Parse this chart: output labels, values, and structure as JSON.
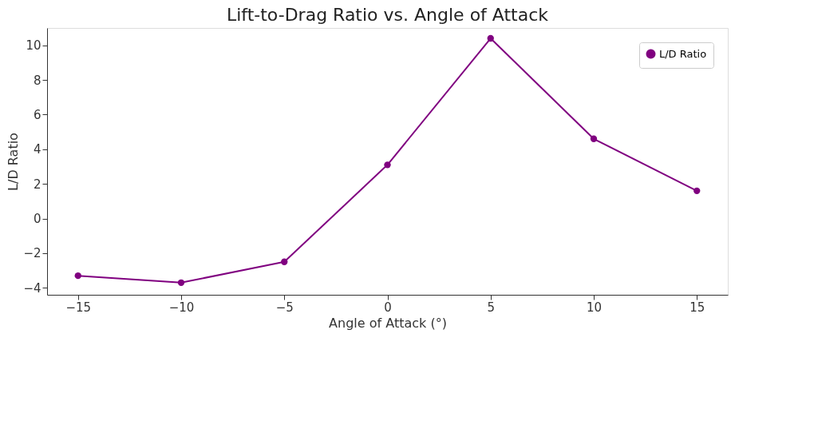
{
  "chart_data": {
    "type": "line",
    "title": "Lift-to-Drag Ratio vs. Angle of Attack",
    "xlabel": "Angle of Attack (°)",
    "ylabel": "L/D Ratio",
    "x": [
      -15,
      -10,
      -5,
      0,
      5,
      10,
      15
    ],
    "series": [
      {
        "name": "L/D Ratio",
        "color": "#800080",
        "values": [
          -3.3,
          -3.7,
          -2.5,
          3.1,
          10.4,
          4.6,
          1.6
        ]
      }
    ],
    "xlim": [
      -16.5,
      16.5
    ],
    "xticks": [
      -15,
      -10,
      -5,
      0,
      5,
      10,
      15
    ],
    "ylim": [
      -4.4,
      11
    ],
    "yticks": [
      -4,
      -2,
      0,
      2,
      4,
      6,
      8,
      10
    ],
    "grid": false,
    "legend": "top right",
    "marker": "circle",
    "line_style": "solid"
  }
}
